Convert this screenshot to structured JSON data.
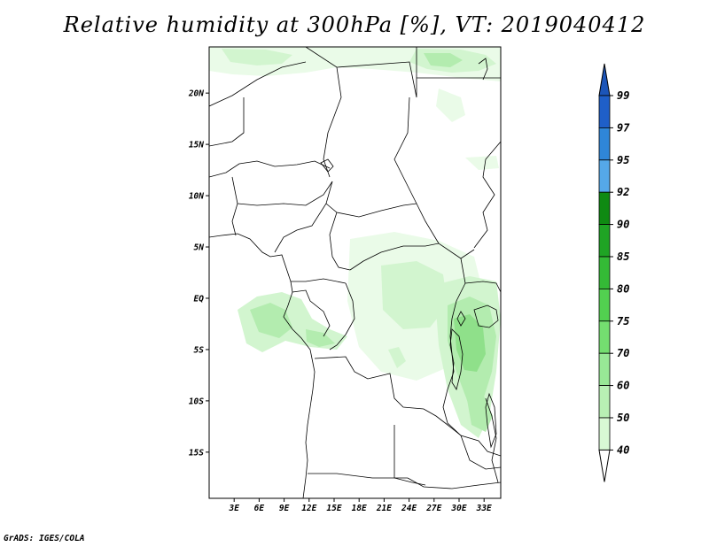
{
  "title": "Relative humidity at 300hPa [%], VT: 2019040412",
  "footer": "GrADS: IGES/COLA",
  "map": {
    "lat_range": [
      -19.5,
      24.5
    ],
    "lon_range": [
      0,
      35
    ],
    "lat_ticks": [
      {
        "value": 20,
        "label": "20N"
      },
      {
        "value": 15,
        "label": "15N"
      },
      {
        "value": 10,
        "label": "10N"
      },
      {
        "value": 5,
        "label": "5N"
      },
      {
        "value": 0,
        "label": "EQ"
      },
      {
        "value": -5,
        "label": "5S"
      },
      {
        "value": -10,
        "label": "10S"
      },
      {
        "value": -15,
        "label": "15S"
      }
    ],
    "lon_ticks": [
      {
        "value": 3,
        "label": "3E"
      },
      {
        "value": 6,
        "label": "6E"
      },
      {
        "value": 9,
        "label": "9E"
      },
      {
        "value": 12,
        "label": "12E"
      },
      {
        "value": 15,
        "label": "15E"
      },
      {
        "value": 18,
        "label": "18E"
      },
      {
        "value": 21,
        "label": "21E"
      },
      {
        "value": 24,
        "label": "24E"
      },
      {
        "value": 27,
        "label": "27E"
      },
      {
        "value": 30,
        "label": "30E"
      },
      {
        "value": 33,
        "label": "33E"
      }
    ]
  },
  "colorbar": {
    "levels": [
      "99",
      "97",
      "95",
      "92",
      "90",
      "85",
      "80",
      "75",
      "70",
      "60",
      "50",
      "40"
    ],
    "colors": [
      "#1f5fc8",
      "#2f86d8",
      "#55a8e8",
      "#0f8a12",
      "#1fa424",
      "#34ba36",
      "#52d050",
      "#74de70",
      "#98e896",
      "#b8f0b4",
      "#d8f8d4",
      "#f0fef0"
    ],
    "tip_top": "#1c55b8",
    "tip_bottom": "#ffffff"
  },
  "humidity_fill_colors": {
    "faint": "#eafbe8",
    "light": "#d2f5cf",
    "medium": "#b3ecaf",
    "strong": "#8fe08a"
  }
}
